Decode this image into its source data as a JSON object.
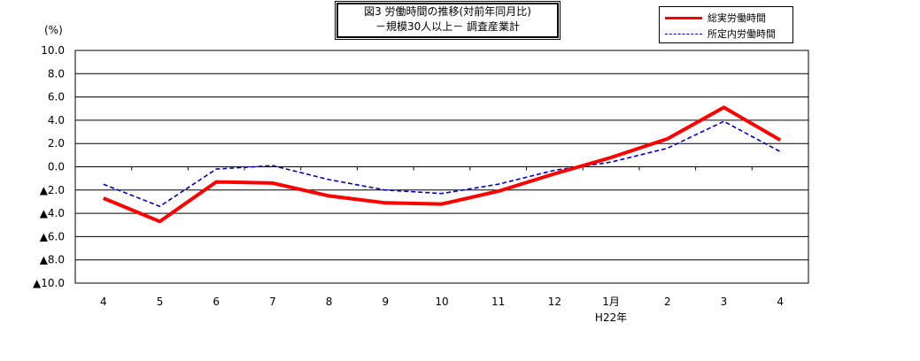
{
  "chart_data": {
    "type": "line",
    "title": "図3  労働時間の推移(対前年同月比)",
    "subtitle": "－規模30人以上－  調査産業計",
    "unit_label": "(%)",
    "categories": [
      "4",
      "5",
      "6",
      "7",
      "8",
      "9",
      "10",
      "11",
      "12",
      "1月",
      "2",
      "3",
      "4"
    ],
    "category_sublabel": "H22年",
    "ylim": [
      -10,
      10
    ],
    "yticks": [
      "10.0",
      "8.0",
      "6.0",
      "4.0",
      "2.0",
      "0.0",
      "▲2.0",
      "▲4.0",
      "▲6.0",
      "▲8.0",
      "▲10.0"
    ],
    "ytick_values": [
      10,
      8,
      6,
      4,
      2,
      0,
      -2,
      -4,
      -6,
      -8,
      -10
    ],
    "grid": true,
    "legend_position": "top-right",
    "series": [
      {
        "name": "総実労働時間",
        "color": "#ff0000",
        "style": "solid",
        "values": [
          -2.7,
          -4.7,
          -1.3,
          -1.4,
          -2.5,
          -3.1,
          -3.2,
          -2.1,
          -0.6,
          0.8,
          2.4,
          5.1,
          2.3
        ]
      },
      {
        "name": "所定内労働時間",
        "color": "#0000cc",
        "style": "dashed",
        "values": [
          -1.5,
          -3.4,
          -0.2,
          0.1,
          -1.1,
          -2.0,
          -2.3,
          -1.5,
          -0.3,
          0.4,
          1.6,
          3.9,
          1.3
        ]
      }
    ]
  }
}
